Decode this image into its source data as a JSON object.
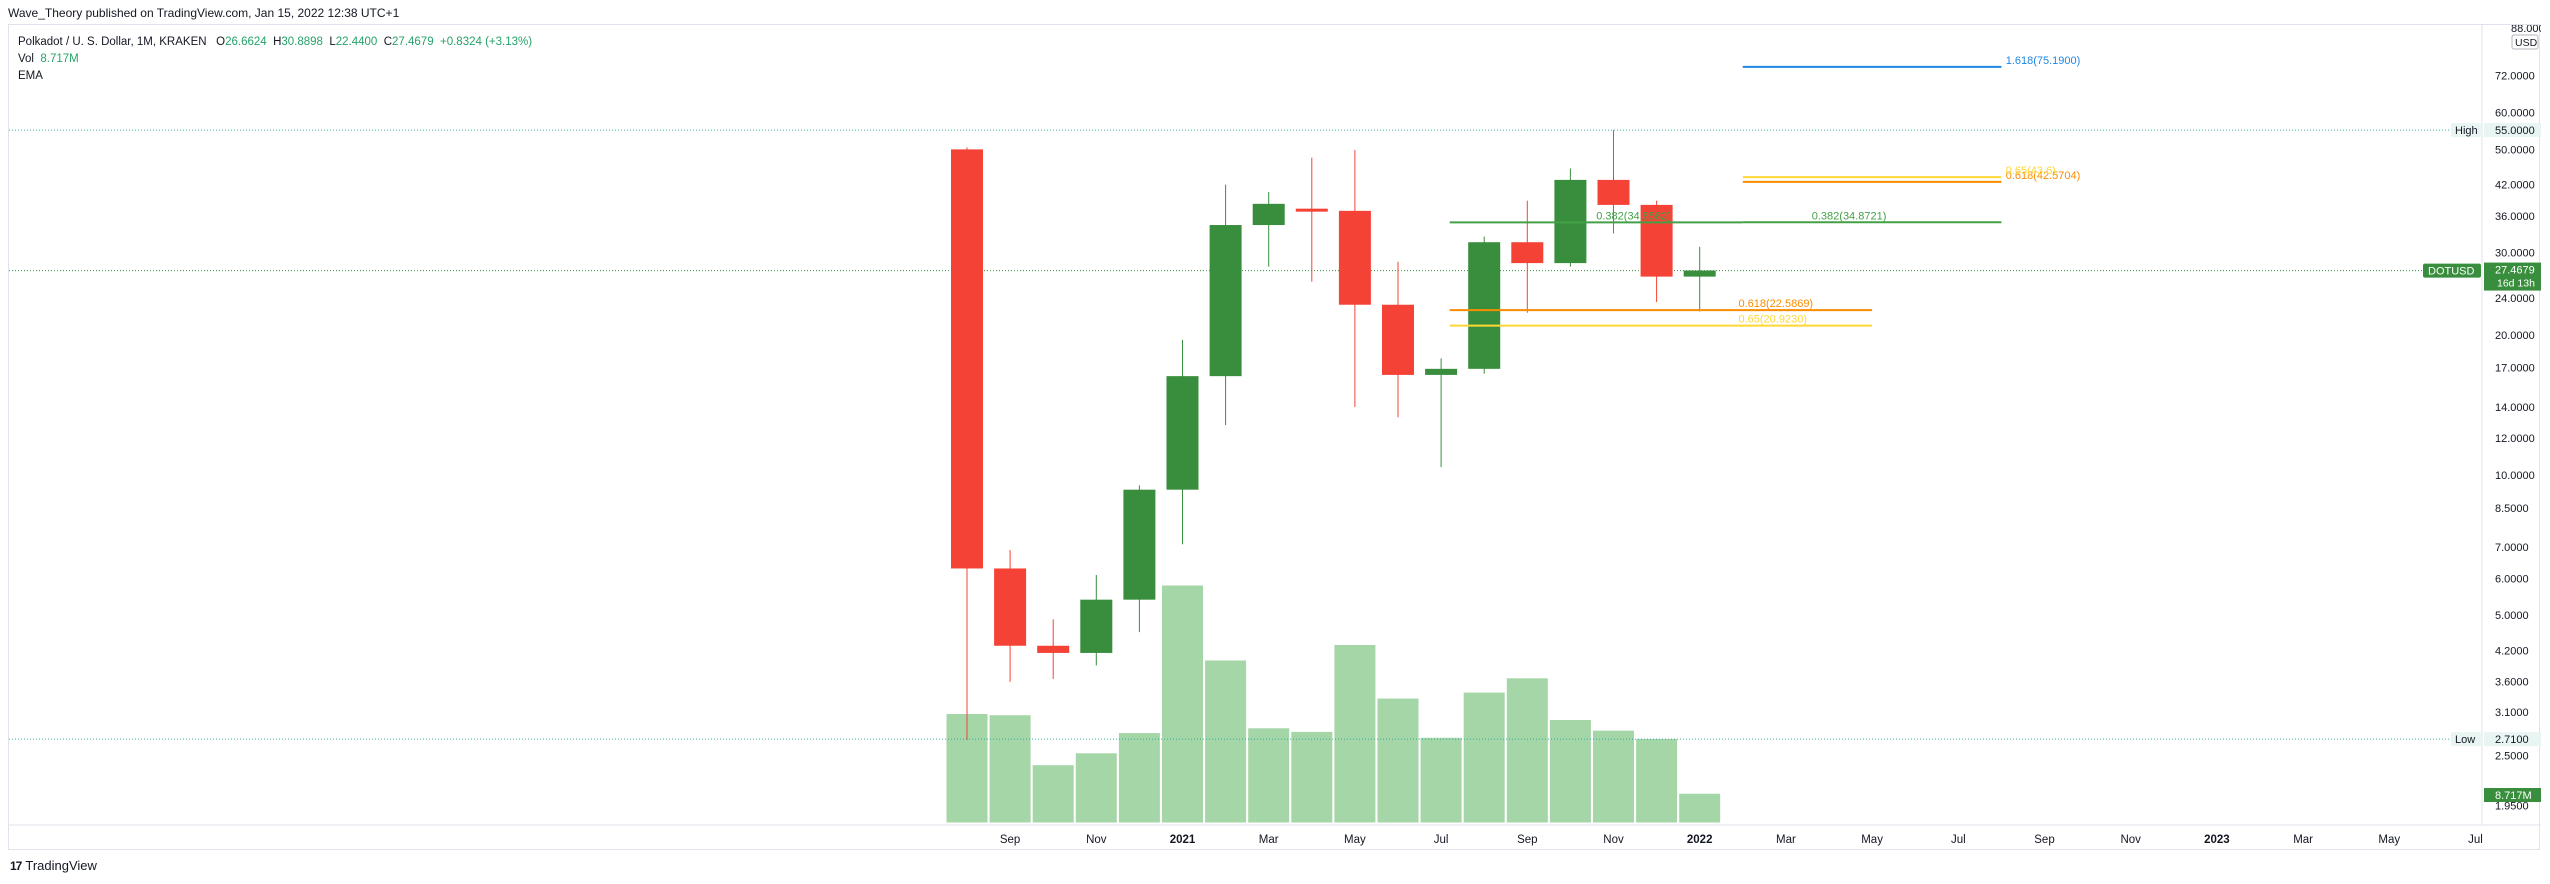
{
  "header": {
    "publish_line": "Wave_Theory published on TradingView.com, Jan 15, 2022 12:38 UTC+1"
  },
  "legend": {
    "symbol_line": "Polkadot / U. S. Dollar, 1M, KRAKEN",
    "open_label": "O",
    "open_value": "26.6624",
    "high_label": "H",
    "high_value": "30.8898",
    "low_label": "L",
    "low_value": "22.4400",
    "close_label": "C",
    "close_value": "27.4679",
    "change": "+0.8324 (+3.13%)",
    "vol_label": "Vol",
    "vol_value": "8.717M",
    "ema_label": "EMA"
  },
  "footer": {
    "brand": "TradingView",
    "logo_mark": "17"
  },
  "colors": {
    "up": "#388e3c",
    "down": "#f44336",
    "volume": "#a5d6a7",
    "fib_blue": "#1e88e5",
    "fib_green": "#43a047",
    "fib_orange": "#fb8c00",
    "fib_yellow": "#fdd835",
    "last_price_bg": "#388e3c"
  },
  "chart_data": {
    "type": "candlestick",
    "symbol": "DOTUSD",
    "interval": "1M",
    "y_scale": "log",
    "ylim": [
      1.9,
      88
    ],
    "y_axis_currency": "USD",
    "y_ticks": [
      "88.0000",
      "72.0000",
      "60.0000",
      "50.0000",
      "42.0000",
      "36.0000",
      "30.0000",
      "24.0000",
      "20.0000",
      "17.0000",
      "14.0000",
      "12.0000",
      "10.0000",
      "8.5000",
      "7.0000",
      "6.0000",
      "5.0000",
      "4.2000",
      "3.6000",
      "3.1000",
      "2.5000",
      "1.9500"
    ],
    "x_ticks": [
      {
        "label": "Sep",
        "idx": 1,
        "bold": false
      },
      {
        "label": "Nov",
        "idx": 3,
        "bold": false
      },
      {
        "label": "2021",
        "idx": 5,
        "bold": true
      },
      {
        "label": "Mar",
        "idx": 7,
        "bold": false
      },
      {
        "label": "May",
        "idx": 9,
        "bold": false
      },
      {
        "label": "Jul",
        "idx": 11,
        "bold": false
      },
      {
        "label": "Sep",
        "idx": 13,
        "bold": false
      },
      {
        "label": "Nov",
        "idx": 15,
        "bold": false
      },
      {
        "label": "2022",
        "idx": 17,
        "bold": true
      },
      {
        "label": "Mar",
        "idx": 19,
        "bold": false
      },
      {
        "label": "May",
        "idx": 21,
        "bold": false
      },
      {
        "label": "Jul",
        "idx": 23,
        "bold": false
      },
      {
        "label": "Sep",
        "idx": 25,
        "bold": false
      },
      {
        "label": "Nov",
        "idx": 27,
        "bold": false
      },
      {
        "label": "2023",
        "idx": 29,
        "bold": true
      },
      {
        "label": "Mar",
        "idx": 31,
        "bold": false
      },
      {
        "label": "May",
        "idx": 33,
        "bold": false
      },
      {
        "label": "Jul",
        "idx": 35,
        "bold": false
      }
    ],
    "candles": [
      {
        "month": "2020-08",
        "o": 50.0,
        "h": 50.5,
        "l": 2.7,
        "c": 6.3,
        "v": 0.46
      },
      {
        "month": "2020-09",
        "o": 6.3,
        "h": 6.9,
        "l": 3.6,
        "c": 4.3,
        "v": 0.455
      },
      {
        "month": "2020-10",
        "o": 4.3,
        "h": 4.9,
        "l": 3.65,
        "c": 4.15,
        "v": 0.245
      },
      {
        "month": "2020-11",
        "o": 4.15,
        "h": 6.1,
        "l": 3.9,
        "c": 5.4,
        "v": 0.295
      },
      {
        "month": "2020-12",
        "o": 5.4,
        "h": 9.5,
        "l": 4.6,
        "c": 9.3,
        "v": 0.38
      },
      {
        "month": "2021-01",
        "o": 9.3,
        "h": 19.5,
        "l": 7.1,
        "c": 16.3,
        "v": 1.0
      },
      {
        "month": "2021-02",
        "o": 16.3,
        "h": 42.0,
        "l": 12.8,
        "c": 34.4,
        "v": 0.685
      },
      {
        "month": "2021-03",
        "o": 34.4,
        "h": 40.5,
        "l": 28.0,
        "c": 38.2,
        "v": 0.4
      },
      {
        "month": "2021-04",
        "o": 37.3,
        "h": 48.0,
        "l": 26.0,
        "c": 36.9,
        "v": 0.385
      },
      {
        "month": "2021-05",
        "o": 36.9,
        "h": 49.8,
        "l": 14.0,
        "c": 23.2,
        "v": 0.75
      },
      {
        "month": "2021-06",
        "o": 23.2,
        "h": 28.7,
        "l": 13.3,
        "c": 16.4,
        "v": 0.525
      },
      {
        "month": "2021-07",
        "o": 16.4,
        "h": 17.8,
        "l": 10.4,
        "c": 16.9,
        "v": 0.36
      },
      {
        "month": "2021-08",
        "o": 16.9,
        "h": 32.5,
        "l": 16.5,
        "c": 31.6,
        "v": 0.55
      },
      {
        "month": "2021-09",
        "o": 31.6,
        "h": 38.8,
        "l": 22.3,
        "c": 28.5,
        "v": 0.61
      },
      {
        "month": "2021-10",
        "o": 28.5,
        "h": 45.5,
        "l": 28.0,
        "c": 43.0,
        "v": 0.435
      },
      {
        "month": "2021-11",
        "o": 43.0,
        "h": 55.0,
        "l": 33.0,
        "c": 38.0,
        "v": 0.39
      },
      {
        "month": "2021-12",
        "o": 38.0,
        "h": 38.8,
        "l": 23.5,
        "c": 26.66,
        "v": 0.355
      },
      {
        "month": "2022-01",
        "o": 26.66,
        "h": 30.89,
        "l": 22.44,
        "c": 27.47,
        "v": 0.125
      }
    ],
    "volume_scale_max": "≈ 7.0e7",
    "horizontal_levels": [
      {
        "name": "High",
        "value": 55.0,
        "label": "High",
        "price_label": "55.0000"
      },
      {
        "name": "Low",
        "value": 2.71,
        "label": "Low",
        "price_label": "2.7100"
      }
    ],
    "last_price": {
      "symbol": "DOTUSD",
      "value": 27.4679,
      "price_label": "27.4679",
      "countdown": "16d 13h"
    },
    "volume_label": "8.717M",
    "fib_lines": [
      {
        "name": "1.618",
        "value": 75.19,
        "label": "1.618(75.1900)",
        "x_start_idx": 18.0,
        "x_end_idx": 24.0,
        "color": "#1e88e5",
        "label_x_idx": 24.1
      },
      {
        "name": "0.618-upper",
        "value": 42.5704,
        "label": "0.618(42.5704)",
        "x_start_idx": 18.0,
        "x_end_idx": 24.0,
        "color": "#fb8c00",
        "label_x_idx": 24.1
      },
      {
        "name": "0.65-upper",
        "value": 43.6,
        "label": "0.65(43.6)",
        "x_start_idx": 18.0,
        "x_end_idx": 24.0,
        "color": "#fdd835",
        "label_x_idx": 24.1
      },
      {
        "name": "0.382-a",
        "value": 34.8582,
        "label": "0.382(34.8582)",
        "x_start_idx": 11.2,
        "x_end_idx": 18.0,
        "color": "#43a047",
        "label_x_idx": 14.6
      },
      {
        "name": "0.382-b",
        "value": 34.8721,
        "label": "0.382(34.8721)",
        "x_start_idx": 18.0,
        "x_end_idx": 24.0,
        "color": "#43a047",
        "label_x_idx": 19.6
      },
      {
        "name": "0.618-lower",
        "value": 22.5869,
        "label": "0.618(22.5869)",
        "x_start_idx": 11.2,
        "x_end_idx": 21.0,
        "color": "#fb8c00",
        "label_x_idx": 17.9
      },
      {
        "name": "0.65-lower",
        "value": 20.923,
        "label": "0.65(20.9230)",
        "x_start_idx": 11.2,
        "x_end_idx": 21.0,
        "color": "#fdd835",
        "label_x_idx": 17.9
      }
    ]
  }
}
